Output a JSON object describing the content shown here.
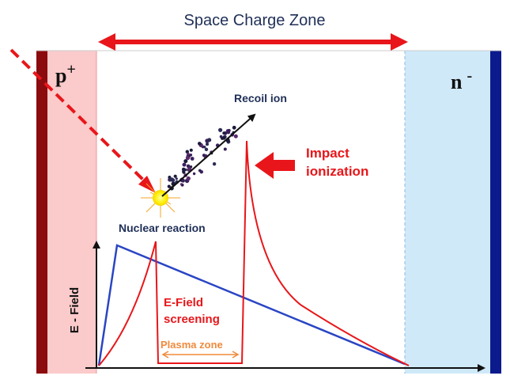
{
  "title": "Space Charge Zone",
  "regions": {
    "p_label": "p",
    "p_superscript": "+",
    "n_label": "n",
    "n_superscript": "-"
  },
  "labels": {
    "recoil_ion": "Recoil ion",
    "nuclear_reaction": "Nuclear reaction",
    "impact_ionization_line1": "Impact",
    "impact_ionization_line2": "ionization",
    "efield_screening_line1": "E-Field",
    "efield_screening_line2": "screening",
    "plasma_zone": "Plasma zone",
    "y_axis": "E - Field"
  },
  "colors": {
    "p_region": "#fbcaca",
    "p_contact": "#8b0b0e",
    "n_region": "#cfe9f9",
    "n_contact": "#0b1a8c",
    "red": "#e8161a",
    "blue": "#2a45c4",
    "orange": "#f08a3c",
    "title": "#1f2f57"
  }
}
